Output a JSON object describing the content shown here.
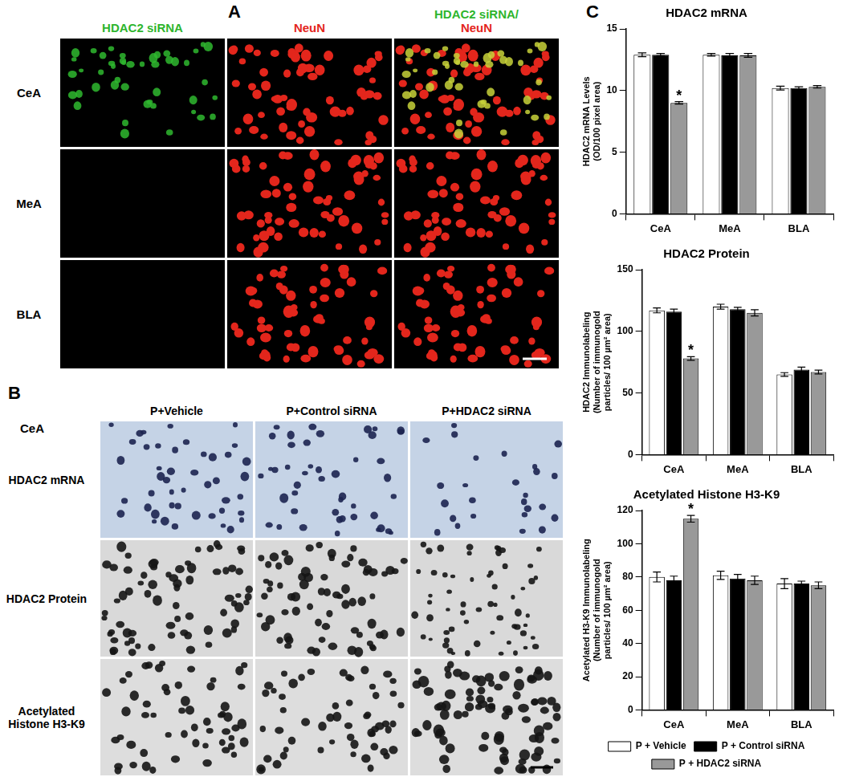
{
  "panel_labels": [
    "A",
    "B",
    "C"
  ],
  "image_panels": {
    "A": {
      "columns": [
        [
          {
            "text": "HDAC2 siRNA",
            "color": "#2db52d"
          }
        ],
        [
          {
            "text": "NeuN",
            "color": "#e3261c"
          }
        ],
        [
          {
            "text": "HDAC2 siRNA/",
            "color": "#2db52d"
          },
          {
            "text": "NeuN",
            "color": "#e3261c"
          }
        ]
      ],
      "rows": [
        "CeA",
        "MeA",
        "BLA"
      ]
    },
    "B": {
      "region": "CeA",
      "columns": [
        "P+Vehicle",
        "P+Control siRNA",
        "P+HDAC2 siRNA"
      ],
      "rows": [
        "HDAC2 mRNA",
        "HDAC2 Protein",
        "Acetylated Histone H3-K9"
      ]
    }
  },
  "chart_data": [
    {
      "type": "bar",
      "title": "HDAC2 mRNA",
      "ylabel": [
        "HDAC2 mRNA Levels",
        "(OD/100 pixel area)"
      ],
      "categories": [
        "CeA",
        "MeA",
        "BLA"
      ],
      "series": [
        {
          "name": "P + Vehicle",
          "color": "#ffffff",
          "values": [
            12.9,
            12.9,
            10.2
          ],
          "errors": [
            0.15,
            0.1,
            0.15
          ]
        },
        {
          "name": "P + Control siRNA",
          "color": "#000000",
          "values": [
            12.9,
            12.85,
            10.2
          ],
          "errors": [
            0.1,
            0.15,
            0.1
          ]
        },
        {
          "name": "P + HDAC2 siRNA",
          "color": "#999999",
          "values": [
            9.0,
            12.85,
            10.3
          ],
          "errors": [
            0.1,
            0.15,
            0.1
          ]
        }
      ],
      "annotations": [
        {
          "text": "*",
          "category": "CeA",
          "series": "P + HDAC2 siRNA"
        }
      ],
      "ylim": [
        0,
        15
      ],
      "yticks": [
        0,
        5,
        10,
        15
      ],
      "grid": false
    },
    {
      "type": "bar",
      "title": "HDAC2 Protein",
      "ylabel": [
        "HDAC2 Immunolabeling",
        "(Number of immunogold",
        "particles/ 100 µm² area)"
      ],
      "categories": [
        "CeA",
        "MeA",
        "BLA"
      ],
      "series": [
        {
          "name": "P + Vehicle",
          "color": "#ffffff",
          "values": [
            117,
            120,
            65
          ],
          "errors": [
            2,
            2,
            1.5
          ]
        },
        {
          "name": "P + Control siRNA",
          "color": "#000000",
          "values": [
            116,
            118,
            69
          ],
          "errors": [
            2,
            1.5,
            2
          ]
        },
        {
          "name": "P + HDAC2 siRNA",
          "color": "#999999",
          "values": [
            78,
            115,
            67
          ],
          "errors": [
            1.5,
            2.5,
            1.5
          ]
        }
      ],
      "annotations": [
        {
          "text": "*",
          "category": "CeA",
          "series": "P + HDAC2 siRNA"
        }
      ],
      "ylim": [
        0,
        150
      ],
      "yticks": [
        0,
        50,
        100,
        150
      ],
      "grid": false
    },
    {
      "type": "bar",
      "title": "Acetylated Histone H3-K9",
      "ylabel": [
        "Acetylated H3-K9 Immunolabeling",
        "(Number of immunogold",
        "particles/ 100 µm² area)"
      ],
      "categories": [
        "CeA",
        "MeA",
        "BLA"
      ],
      "series": [
        {
          "name": "P + Vehicle",
          "color": "#ffffff",
          "values": [
            80,
            81,
            76
          ],
          "errors": [
            3,
            2.5,
            3
          ]
        },
        {
          "name": "P + Control siRNA",
          "color": "#000000",
          "values": [
            78,
            79,
            76
          ],
          "errors": [
            2.5,
            2.5,
            1.5
          ]
        },
        {
          "name": "P + HDAC2 siRNA",
          "color": "#999999",
          "values": [
            115,
            78,
            75
          ],
          "errors": [
            2,
            2.5,
            2
          ]
        }
      ],
      "annotations": [
        {
          "text": "*",
          "category": "CeA",
          "series": "P + HDAC2 siRNA"
        }
      ],
      "ylim": [
        0,
        120
      ],
      "yticks": [
        0,
        20,
        40,
        60,
        80,
        100,
        120
      ],
      "grid": false,
      "legend": "bottom"
    }
  ]
}
